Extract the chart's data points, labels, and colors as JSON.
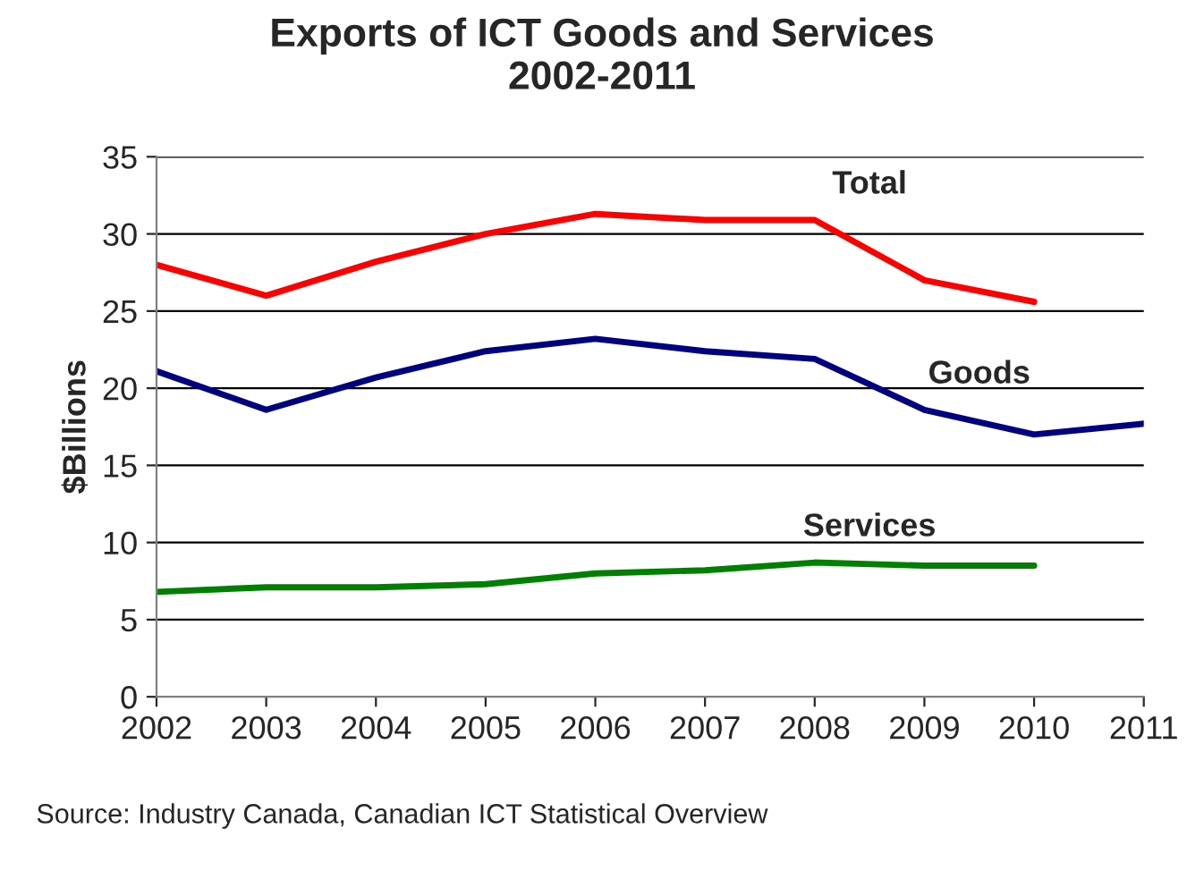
{
  "chart_data": {
    "type": "line",
    "title": "Exports of ICT Goods and Services\n2002-2011",
    "ylabel": "$Billions",
    "x": [
      2002,
      2003,
      2004,
      2005,
      2006,
      2007,
      2008,
      2009,
      2010,
      2011
    ],
    "series": [
      {
        "name": "Total",
        "color": "#ff0000",
        "values": [
          28,
          26,
          28.2,
          30,
          31.3,
          30.9,
          30.9,
          27,
          25.6,
          null
        ]
      },
      {
        "name": "Goods",
        "color": "#000080",
        "values": [
          21.1,
          18.6,
          20.7,
          22.4,
          23.2,
          22.4,
          21.9,
          18.6,
          17,
          17.7
        ]
      },
      {
        "name": "Services",
        "color": "#008000",
        "values": [
          6.8,
          7.1,
          7.1,
          7.3,
          8,
          8.2,
          8.7,
          8.5,
          8.5,
          null
        ]
      }
    ],
    "xlim": [
      2002,
      2011
    ],
    "xticks": [
      2002,
      2003,
      2004,
      2005,
      2006,
      2007,
      2008,
      2009,
      2010,
      2011
    ],
    "ylim": [
      0,
      35
    ],
    "yticks": [
      0,
      5,
      10,
      15,
      20,
      25,
      30,
      35
    ],
    "grid": "y",
    "legend": false,
    "marker": "none",
    "line_style": "solid",
    "annotations": [
      "Source: Industry Canada, Canadian ICT Statistical Overview"
    ]
  }
}
